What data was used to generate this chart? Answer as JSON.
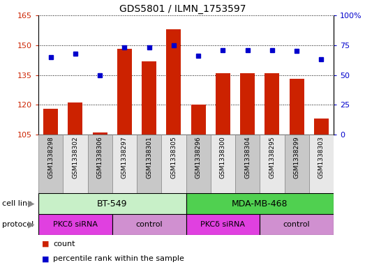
{
  "title": "GDS5801 / ILMN_1753597",
  "samples": [
    "GSM1338298",
    "GSM1338302",
    "GSM1338306",
    "GSM1338297",
    "GSM1338301",
    "GSM1338305",
    "GSM1338296",
    "GSM1338300",
    "GSM1338304",
    "GSM1338295",
    "GSM1338299",
    "GSM1338303"
  ],
  "counts": [
    118,
    121,
    106,
    148,
    142,
    158,
    120,
    136,
    136,
    136,
    133,
    113
  ],
  "percentiles": [
    65,
    68,
    50,
    73,
    73,
    75,
    66,
    71,
    71,
    71,
    70,
    63
  ],
  "ylim_left": [
    105,
    165
  ],
  "ylim_right": [
    0,
    100
  ],
  "yticks_left": [
    105,
    120,
    135,
    150,
    165
  ],
  "yticks_right": [
    0,
    25,
    50,
    75,
    100
  ],
  "bar_color": "#cc2200",
  "dot_color": "#0000cc",
  "cell_line_labels": [
    "BT-549",
    "MDA-MB-468"
  ],
  "cell_line_color_bt": "#c8f0c8",
  "cell_line_color_mda": "#50d050",
  "protocol_labels": [
    "PKCδ siRNA",
    "control",
    "PKCδ siRNA",
    "control"
  ],
  "protocol_color_sirna": "#e040e0",
  "protocol_color_control": "#d090d0",
  "legend_count_color": "#cc2200",
  "legend_pct_color": "#0000cc",
  "sample_bg_even": "#c8c8c8",
  "sample_bg_odd": "#e8e8e8",
  "arrow_color": "#888888"
}
